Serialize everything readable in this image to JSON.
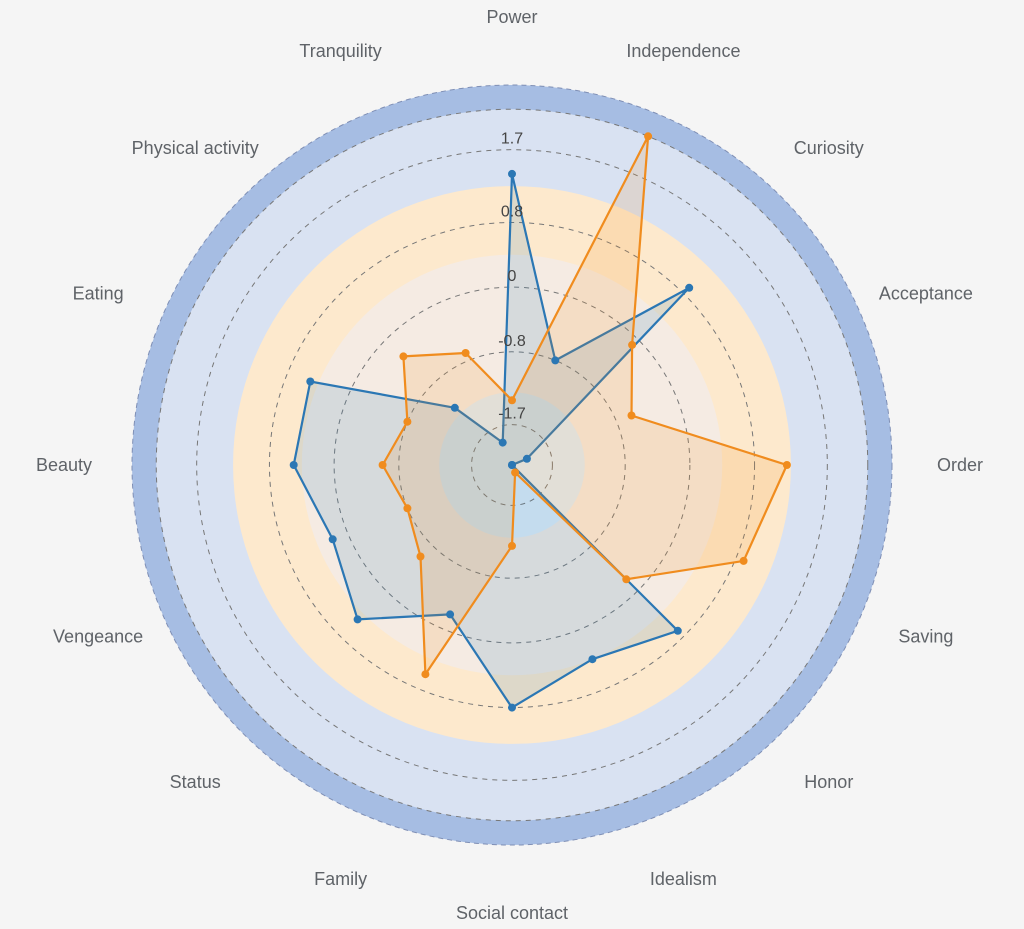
{
  "chart_data": {
    "type": "radar",
    "title": "",
    "axes": [
      "Power",
      "Independence",
      "Curiosity",
      "Acceptance",
      "Order",
      "Saving",
      "Honor",
      "Idealism",
      "Social contact",
      "Family",
      "Status",
      "Vengeance",
      "Beauty",
      "Eating",
      "Physical activity",
      "Tranquility"
    ],
    "ticks": [
      "-1.7",
      "-0.8",
      "0",
      "0.8",
      "1.7"
    ],
    "range": [
      -2.2,
      2.5
    ],
    "series": [
      {
        "color": "#2b77b4",
        "values": [
          1.4,
          -0.8,
          0.9,
          -2.0,
          -2.2,
          -2.2,
          0.7,
          0.4,
          0.8,
          -0.2,
          0.5,
          0.2,
          0.5,
          0.5,
          -1.2,
          -1.9
        ]
      },
      {
        "color": "#f08c1e",
        "values": [
          -1.4,
          2.2,
          -0.1,
          -0.6,
          1.2,
          0.9,
          -0.2,
          -2.1,
          -1.2,
          0.6,
          -0.6,
          -0.8,
          -0.6,
          -0.8,
          -0.3,
          -0.7
        ]
      }
    ],
    "bands": [
      {
        "from": -2.2,
        "to": -1.3,
        "color": "#e0eef8"
      },
      {
        "from": -1.3,
        "to": 0.4,
        "color": "#f5ebe3"
      },
      {
        "from": 0.4,
        "to": 1.25,
        "color": "#fde9cd"
      },
      {
        "from": 1.25,
        "to": 2.2,
        "color": "#d9e2f2"
      },
      {
        "from": 2.2,
        "to": 2.5,
        "color": "#a6bde3"
      }
    ],
    "grid_values": [
      -1.7,
      -0.8,
      0,
      0.8,
      1.7,
      2.2
    ]
  }
}
